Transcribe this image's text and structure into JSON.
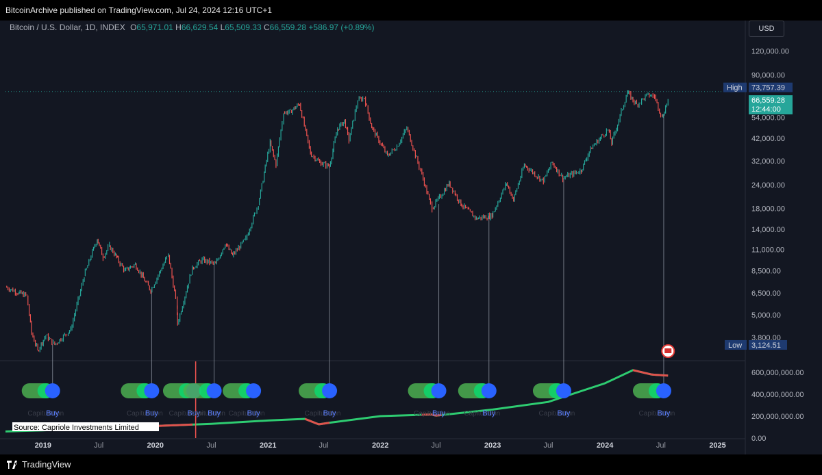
{
  "header": {
    "published_by": "BitcoinArchive published on TradingView.com, Jul 24, 2024 12:16 UTC+1"
  },
  "legend": {
    "symbol": "Bitcoin / U.S. Dollar, 1D, INDEX",
    "o_label": "O",
    "o_value": "65,971.01",
    "h_label": "H",
    "h_value": "66,629.54",
    "l_label": "L",
    "l_value": "65,509.33",
    "c_label": "C",
    "c_value": "66,559.28",
    "change": "+586.97 (+0.89%)"
  },
  "currency": "USD",
  "footer": {
    "brand": "TradingView"
  },
  "colors": {
    "background": "#131722",
    "up": "#26a69a",
    "down": "#ef5350",
    "indicator_green": "#2ecc71",
    "indicator_red": "#e0524d",
    "buy_blue": "#2962ff",
    "high_label": "#1e3a70",
    "price_label": "#26a69a"
  },
  "chart_data": [
    {
      "type": "line",
      "panel": "price",
      "scale": "log",
      "ylim": [
        2900,
        140000
      ],
      "xlim": [
        "2018-09-01",
        "2025-04-01"
      ],
      "x_ticks": [
        {
          "label": "2019",
          "date": "2019-01-01",
          "bold": true
        },
        {
          "label": "Jul",
          "date": "2019-07-01",
          "bold": false
        },
        {
          "label": "2020",
          "date": "2020-01-01",
          "bold": true
        },
        {
          "label": "Jul",
          "date": "2020-07-01",
          "bold": false
        },
        {
          "label": "2021",
          "date": "2021-01-01",
          "bold": true
        },
        {
          "label": "Jul",
          "date": "2021-07-01",
          "bold": false
        },
        {
          "label": "2022",
          "date": "2022-01-01",
          "bold": true
        },
        {
          "label": "Jul",
          "date": "2022-07-01",
          "bold": false
        },
        {
          "label": "2023",
          "date": "2023-01-01",
          "bold": true
        },
        {
          "label": "Jul",
          "date": "2023-07-01",
          "bold": false
        },
        {
          "label": "2024",
          "date": "2024-01-01",
          "bold": true
        },
        {
          "label": "Jul",
          "date": "2024-07-01",
          "bold": false
        },
        {
          "label": "2025",
          "date": "2025-01-01",
          "bold": true
        }
      ],
      "y_ticks": [
        {
          "value": 120000,
          "label": "120,000.00"
        },
        {
          "value": 90000,
          "label": "90,000.00"
        },
        {
          "value": 54000,
          "label": "54,000.00"
        },
        {
          "value": 42000,
          "label": "42,000.00"
        },
        {
          "value": 32000,
          "label": "32,000.00"
        },
        {
          "value": 24000,
          "label": "24,000.00"
        },
        {
          "value": 18000,
          "label": "18,000.00"
        },
        {
          "value": 14000,
          "label": "14,000.00"
        },
        {
          "value": 11000,
          "label": "11,000.00"
        },
        {
          "value": 8500,
          "label": "8,500.00"
        },
        {
          "value": 6500,
          "label": "6,500.00"
        },
        {
          "value": 5000,
          "label": "5,000.00"
        },
        {
          "value": 3800,
          "label": "3,800.00"
        }
      ],
      "high": {
        "label": "High",
        "value": 73757.39,
        "text": "73,757.39"
      },
      "low": {
        "label": "Low",
        "value": 3124.51,
        "text": "3,124.51"
      },
      "last": {
        "value": 66559.28,
        "text": "66,559.28",
        "countdown": "12:44:00"
      },
      "series": [
        {
          "points": [
            [
              "2018-09-01",
              7000
            ],
            [
              "2018-10-15",
              6500
            ],
            [
              "2018-11-10",
              6300
            ],
            [
              "2018-11-25",
              4000
            ],
            [
              "2018-12-15",
              3250
            ],
            [
              "2019-01-10",
              3900
            ],
            [
              "2019-02-08",
              3500
            ],
            [
              "2019-04-01",
              4200
            ],
            [
              "2019-05-15",
              8000
            ],
            [
              "2019-06-26",
              12500
            ],
            [
              "2019-07-15",
              10000
            ],
            [
              "2019-08-05",
              11500
            ],
            [
              "2019-09-24",
              8500
            ],
            [
              "2019-10-28",
              9200
            ],
            [
              "2019-12-17",
              6700
            ],
            [
              "2020-02-12",
              10300
            ],
            [
              "2020-03-12",
              5500
            ],
            [
              "2020-03-13",
              4500
            ],
            [
              "2020-04-30",
              8800
            ],
            [
              "2020-06-01",
              9700
            ],
            [
              "2020-07-15",
              9200
            ],
            [
              "2020-08-15",
              11800
            ],
            [
              "2020-09-08",
              10200
            ],
            [
              "2020-10-21",
              12500
            ],
            [
              "2020-12-01",
              19000
            ],
            [
              "2021-01-08",
              40000
            ],
            [
              "2021-01-27",
              30500
            ],
            [
              "2021-02-21",
              57000
            ],
            [
              "2021-03-15",
              58000
            ],
            [
              "2021-04-14",
              63500
            ],
            [
              "2021-05-19",
              35000
            ],
            [
              "2021-06-22",
              31000
            ],
            [
              "2021-07-20",
              30000
            ],
            [
              "2021-08-15",
              47000
            ],
            [
              "2021-09-07",
              52000
            ],
            [
              "2021-09-21",
              41000
            ],
            [
              "2021-10-20",
              66000
            ],
            [
              "2021-11-10",
              68500
            ],
            [
              "2021-12-04",
              48000
            ],
            [
              "2022-01-24",
              34000
            ],
            [
              "2022-02-24",
              38000
            ],
            [
              "2022-03-28",
              47500
            ],
            [
              "2022-05-12",
              28500
            ],
            [
              "2022-06-18",
              18000
            ],
            [
              "2022-08-13",
              24500
            ],
            [
              "2022-09-20",
              19000
            ],
            [
              "2022-11-09",
              16000
            ],
            [
              "2022-12-30",
              16500
            ],
            [
              "2023-02-15",
              24500
            ],
            [
              "2023-03-10",
              20000
            ],
            [
              "2023-04-14",
              30500
            ],
            [
              "2023-06-15",
              25000
            ],
            [
              "2023-07-13",
              31500
            ],
            [
              "2023-08-17",
              26000
            ],
            [
              "2023-10-16",
              28500
            ],
            [
              "2023-11-15",
              37000
            ],
            [
              "2024-01-11",
              46500
            ],
            [
              "2024-01-23",
              39500
            ],
            [
              "2024-03-14",
              73000
            ],
            [
              "2024-04-13",
              63000
            ],
            [
              "2024-05-20",
              71000
            ],
            [
              "2024-06-10",
              69500
            ],
            [
              "2024-07-05",
              54000
            ],
            [
              "2024-07-24",
              66559
            ]
          ]
        }
      ],
      "buy_lines": [
        {
          "date": "2019-02-01",
          "price": 3500
        },
        {
          "date": "2019-12-20",
          "price": 6700
        },
        {
          "date": "2020-07-10",
          "price": 9200
        },
        {
          "date": "2021-07-20",
          "price": 30000
        },
        {
          "date": "2022-07-10",
          "price": 19000
        },
        {
          "date": "2022-12-20",
          "price": 16500
        },
        {
          "date": "2023-08-20",
          "price": 26000
        },
        {
          "date": "2024-07-10",
          "price": 56000
        }
      ]
    },
    {
      "type": "line",
      "panel": "indicator",
      "ylim": [
        0,
        700000000
      ],
      "source": "Source: Capriole Investments Limited",
      "y_ticks": [
        {
          "value": 600000000,
          "label": "600,000,000.00"
        },
        {
          "value": 400000000,
          "label": "400,000,000.00"
        },
        {
          "value": 200000000,
          "label": "200,000,000.00"
        },
        {
          "value": 0,
          "label": "0.00"
        }
      ],
      "signal_line_date": "2020-05-11",
      "series": [
        {
          "points": [
            [
              "2018-09-01",
              60000000
            ],
            [
              "2019-01-01",
              70000000
            ],
            [
              "2019-07-01",
              95000000
            ],
            [
              "2020-01-01",
              110000000
            ],
            [
              "2020-07-01",
              130000000
            ],
            [
              "2021-01-01",
              160000000
            ],
            [
              "2021-05-01",
              175000000
            ],
            [
              "2021-06-15",
              125000000
            ],
            [
              "2021-07-20",
              140000000
            ],
            [
              "2022-01-01",
              200000000
            ],
            [
              "2022-06-15",
              215000000
            ],
            [
              "2022-07-01",
              205000000
            ],
            [
              "2023-01-01",
              260000000
            ],
            [
              "2023-07-01",
              330000000
            ],
            [
              "2024-01-01",
              500000000
            ],
            [
              "2024-04-01",
              620000000
            ],
            [
              "2024-06-01",
              580000000
            ],
            [
              "2024-07-24",
              570000000
            ]
          ],
          "red_segments": [
            [
              "2019-12-01",
              "2020-05-01"
            ],
            [
              "2021-05-01",
              "2021-07-20"
            ],
            [
              "2022-05-15",
              "2022-07-20"
            ],
            [
              "2024-04-01",
              "2024-07-24"
            ]
          ]
        }
      ],
      "signals": [
        {
          "date": "2019-02-01",
          "label": "Buy",
          "faint_label": "Capitulation"
        },
        {
          "date": "2019-12-20",
          "label": "Buy",
          "faint_label": "Capitulation"
        },
        {
          "date": "2020-05-05",
          "label": "Buy",
          "faint_label": "Capitulation"
        },
        {
          "date": "2020-07-10",
          "label": "Buy",
          "faint_label": "Capitulation"
        },
        {
          "date": "2020-11-15",
          "label": "Buy",
          "faint_label": "Capitulation"
        },
        {
          "date": "2021-07-20",
          "label": "Buy",
          "faint_label": "Capitulation"
        },
        {
          "date": "2022-07-10",
          "label": "Buy",
          "faint_label": "Capitulation"
        },
        {
          "date": "2022-12-20",
          "label": "Buy",
          "faint_label": "Capitulation"
        },
        {
          "date": "2023-08-20",
          "label": "Buy",
          "faint_label": "Capitulation"
        },
        {
          "date": "2024-07-10",
          "label": "Buy",
          "faint_label": "Capitulation"
        }
      ]
    }
  ]
}
